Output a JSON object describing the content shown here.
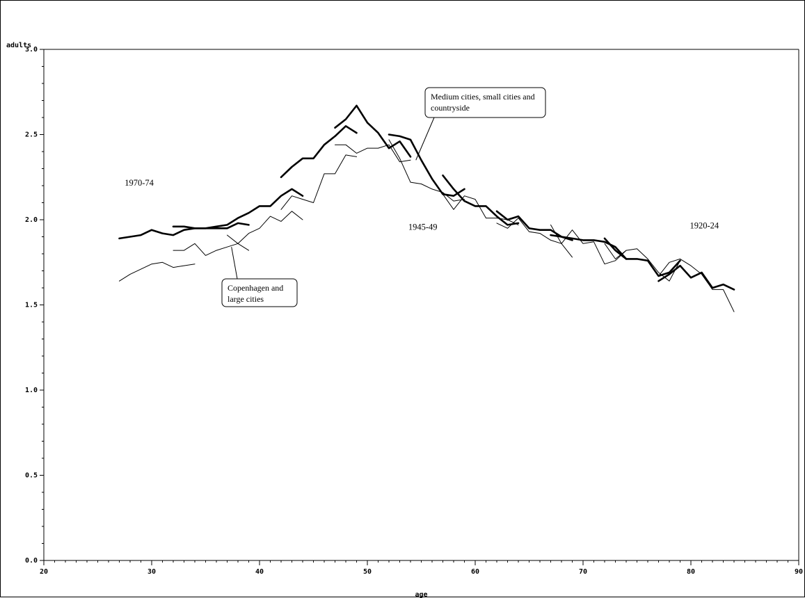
{
  "chart_data": {
    "type": "line",
    "xlabel": "age",
    "ylabel": "adults",
    "xlim": [
      20,
      90
    ],
    "ylim": [
      0.0,
      3.0
    ],
    "x_ticks": [
      "20",
      "30",
      "40",
      "50",
      "60",
      "70",
      "80",
      "90"
    ],
    "y_ticks": [
      "0.0",
      "0.5",
      "1.0",
      "1.5",
      "2.0",
      "2.5",
      "3.0"
    ],
    "grid": false,
    "legend": "none",
    "annotations": [
      {
        "text": "1970-74",
        "x": 27.5,
        "y": 2.2
      },
      {
        "text": "1945-49",
        "x": 53.8,
        "y": 1.94
      },
      {
        "text": "1920-24",
        "x": 79.9,
        "y": 1.95
      }
    ],
    "callouts": [
      {
        "lines": [
          "Medium cities, small cities and",
          "countryside"
        ],
        "points_to": {
          "x": 54.5,
          "y": 2.35
        }
      },
      {
        "lines": [
          "Copenhagen and",
          "large cities"
        ],
        "points_to": {
          "x": 37.4,
          "y": 1.84
        }
      }
    ],
    "series": [
      {
        "style": "thick",
        "x": [
          27,
          28,
          29,
          30,
          31,
          32,
          33,
          34,
          35,
          36,
          37,
          38,
          39
        ],
        "y": [
          1.89,
          1.9,
          1.91,
          1.94,
          1.92,
          1.91,
          1.94,
          1.95,
          1.95,
          1.95,
          1.95,
          1.98,
          1.97
        ]
      },
      {
        "style": "thick",
        "x": [
          32,
          33,
          34,
          35,
          36,
          37,
          38,
          39,
          40,
          41,
          42,
          43,
          44
        ],
        "y": [
          1.96,
          1.96,
          1.95,
          1.95,
          1.96,
          1.97,
          2.01,
          2.04,
          2.08,
          2.08,
          2.14,
          2.18,
          2.14
        ]
      },
      {
        "style": "thick",
        "x": [
          42,
          43,
          44,
          45,
          46,
          47,
          48,
          49
        ],
        "y": [
          2.25,
          2.31,
          2.36,
          2.36,
          2.44,
          2.49,
          2.55,
          2.51
        ]
      },
      {
        "style": "thick",
        "x": [
          47,
          48,
          49,
          50,
          51,
          52,
          53,
          54
        ],
        "y": [
          2.54,
          2.59,
          2.67,
          2.57,
          2.51,
          2.42,
          2.46,
          2.37
        ]
      },
      {
        "style": "thick",
        "x": [
          52,
          53,
          54,
          55,
          56,
          57,
          58,
          59
        ],
        "y": [
          2.5,
          2.49,
          2.47,
          2.35,
          2.24,
          2.15,
          2.14,
          2.18
        ]
      },
      {
        "style": "thick",
        "x": [
          57,
          58,
          59,
          60,
          61,
          62,
          63,
          64
        ],
        "y": [
          2.26,
          2.18,
          2.11,
          2.08,
          2.08,
          2.02,
          1.97,
          1.98
        ]
      },
      {
        "style": "thick",
        "x": [
          62,
          63,
          64,
          65,
          66,
          67,
          68,
          69
        ],
        "y": [
          2.05,
          2.0,
          2.02,
          1.95,
          1.94,
          1.94,
          1.9,
          1.88
        ]
      },
      {
        "style": "thick",
        "x": [
          67,
          68,
          69,
          70,
          71,
          72,
          73,
          74
        ],
        "y": [
          1.91,
          1.9,
          1.89,
          1.88,
          1.88,
          1.87,
          1.84,
          1.77
        ]
      },
      {
        "style": "thick",
        "x": [
          72,
          73,
          74,
          75,
          76,
          77,
          78,
          79
        ],
        "y": [
          1.89,
          1.82,
          1.77,
          1.77,
          1.76,
          1.67,
          1.69,
          1.76
        ]
      },
      {
        "style": "thick",
        "x": [
          77,
          78,
          79,
          80,
          81,
          82,
          83,
          84
        ],
        "y": [
          1.64,
          1.68,
          1.73,
          1.66,
          1.69,
          1.6,
          1.62,
          1.59
        ]
      },
      {
        "style": "thin",
        "x": [
          27,
          28,
          29,
          30,
          31,
          32,
          33,
          34
        ],
        "y": [
          1.64,
          1.68,
          1.71,
          1.74,
          1.75,
          1.72,
          1.73,
          1.74
        ]
      },
      {
        "style": "thin",
        "x": [
          32,
          33,
          34,
          35,
          36,
          37,
          38,
          39
        ],
        "y": [
          1.82,
          1.82,
          1.86,
          1.79,
          1.82,
          1.84,
          1.86,
          1.82
        ]
      },
      {
        "style": "thin",
        "x": [
          37,
          38,
          39,
          40,
          41,
          42,
          43,
          44
        ],
        "y": [
          1.91,
          1.86,
          1.92,
          1.95,
          2.02,
          1.99,
          2.05,
          2.0
        ]
      },
      {
        "style": "thin",
        "x": [
          42,
          43,
          44,
          45,
          46,
          47,
          48,
          49
        ],
        "y": [
          2.06,
          2.14,
          2.12,
          2.1,
          2.27,
          2.27,
          2.38,
          2.37
        ]
      },
      {
        "style": "thin",
        "x": [
          47,
          48,
          49,
          50,
          51,
          52,
          53,
          54
        ],
        "y": [
          2.44,
          2.44,
          2.39,
          2.42,
          2.42,
          2.44,
          2.34,
          2.35
        ]
      },
      {
        "style": "thin",
        "x": [
          52,
          53,
          54,
          55,
          56,
          57,
          58,
          59
        ],
        "y": [
          2.47,
          2.36,
          2.22,
          2.21,
          2.18,
          2.16,
          2.11,
          2.12
        ]
      },
      {
        "style": "thin",
        "x": [
          57,
          58,
          59,
          60,
          61,
          62,
          63,
          64
        ],
        "y": [
          2.15,
          2.06,
          2.14,
          2.12,
          2.01,
          2.01,
          2.0,
          1.97
        ]
      },
      {
        "style": "thin",
        "x": [
          62,
          63,
          64,
          65,
          66,
          67,
          68,
          69
        ],
        "y": [
          1.98,
          1.95,
          2.01,
          1.93,
          1.92,
          1.88,
          1.86,
          1.78
        ]
      },
      {
        "style": "thin",
        "x": [
          67,
          68,
          69,
          70,
          71,
          72,
          73,
          74
        ],
        "y": [
          1.97,
          1.86,
          1.94,
          1.86,
          1.87,
          1.74,
          1.76,
          1.82
        ]
      },
      {
        "style": "thin",
        "x": [
          72,
          73,
          74,
          75,
          76,
          77,
          78,
          79
        ],
        "y": [
          1.86,
          1.77,
          1.82,
          1.83,
          1.77,
          1.69,
          1.64,
          1.76
        ]
      },
      {
        "style": "thin",
        "x": [
          77,
          78,
          79,
          80,
          81,
          82,
          83,
          84
        ],
        "y": [
          1.67,
          1.75,
          1.77,
          1.73,
          1.68,
          1.59,
          1.59,
          1.46
        ]
      }
    ]
  }
}
